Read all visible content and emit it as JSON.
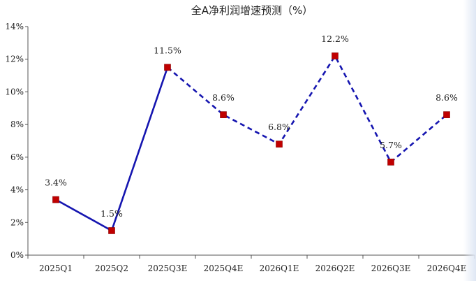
{
  "chart_data": {
    "type": "line",
    "title": "全A净利润增速预测（%）",
    "xlabel": "",
    "ylabel": "",
    "categories": [
      "2025Q1",
      "2025Q2",
      "2025Q3E",
      "2025Q4E",
      "2026Q1E",
      "2026Q2E",
      "2026Q3E",
      "2026Q4E"
    ],
    "values": [
      3.4,
      1.5,
      11.5,
      8.6,
      6.8,
      12.2,
      5.7,
      8.6
    ],
    "data_labels": [
      "3.4%",
      "1.5%",
      "11.5%",
      "8.6%",
      "6.8%",
      "12.2%",
      "5.7%",
      "8.6%"
    ],
    "yticks": [
      0,
      2,
      4,
      6,
      8,
      10,
      12,
      14
    ],
    "ytick_labels": [
      "0%",
      "2%",
      "4%",
      "6%",
      "8%",
      "10%",
      "12%",
      "14%"
    ],
    "ylim": [
      0,
      14
    ],
    "actual_count": 2,
    "grid": false,
    "legend": "none",
    "line_color": "#1515b0",
    "marker_color": "#c00000",
    "actual_style": "solid",
    "forecast_style": "dashed"
  }
}
